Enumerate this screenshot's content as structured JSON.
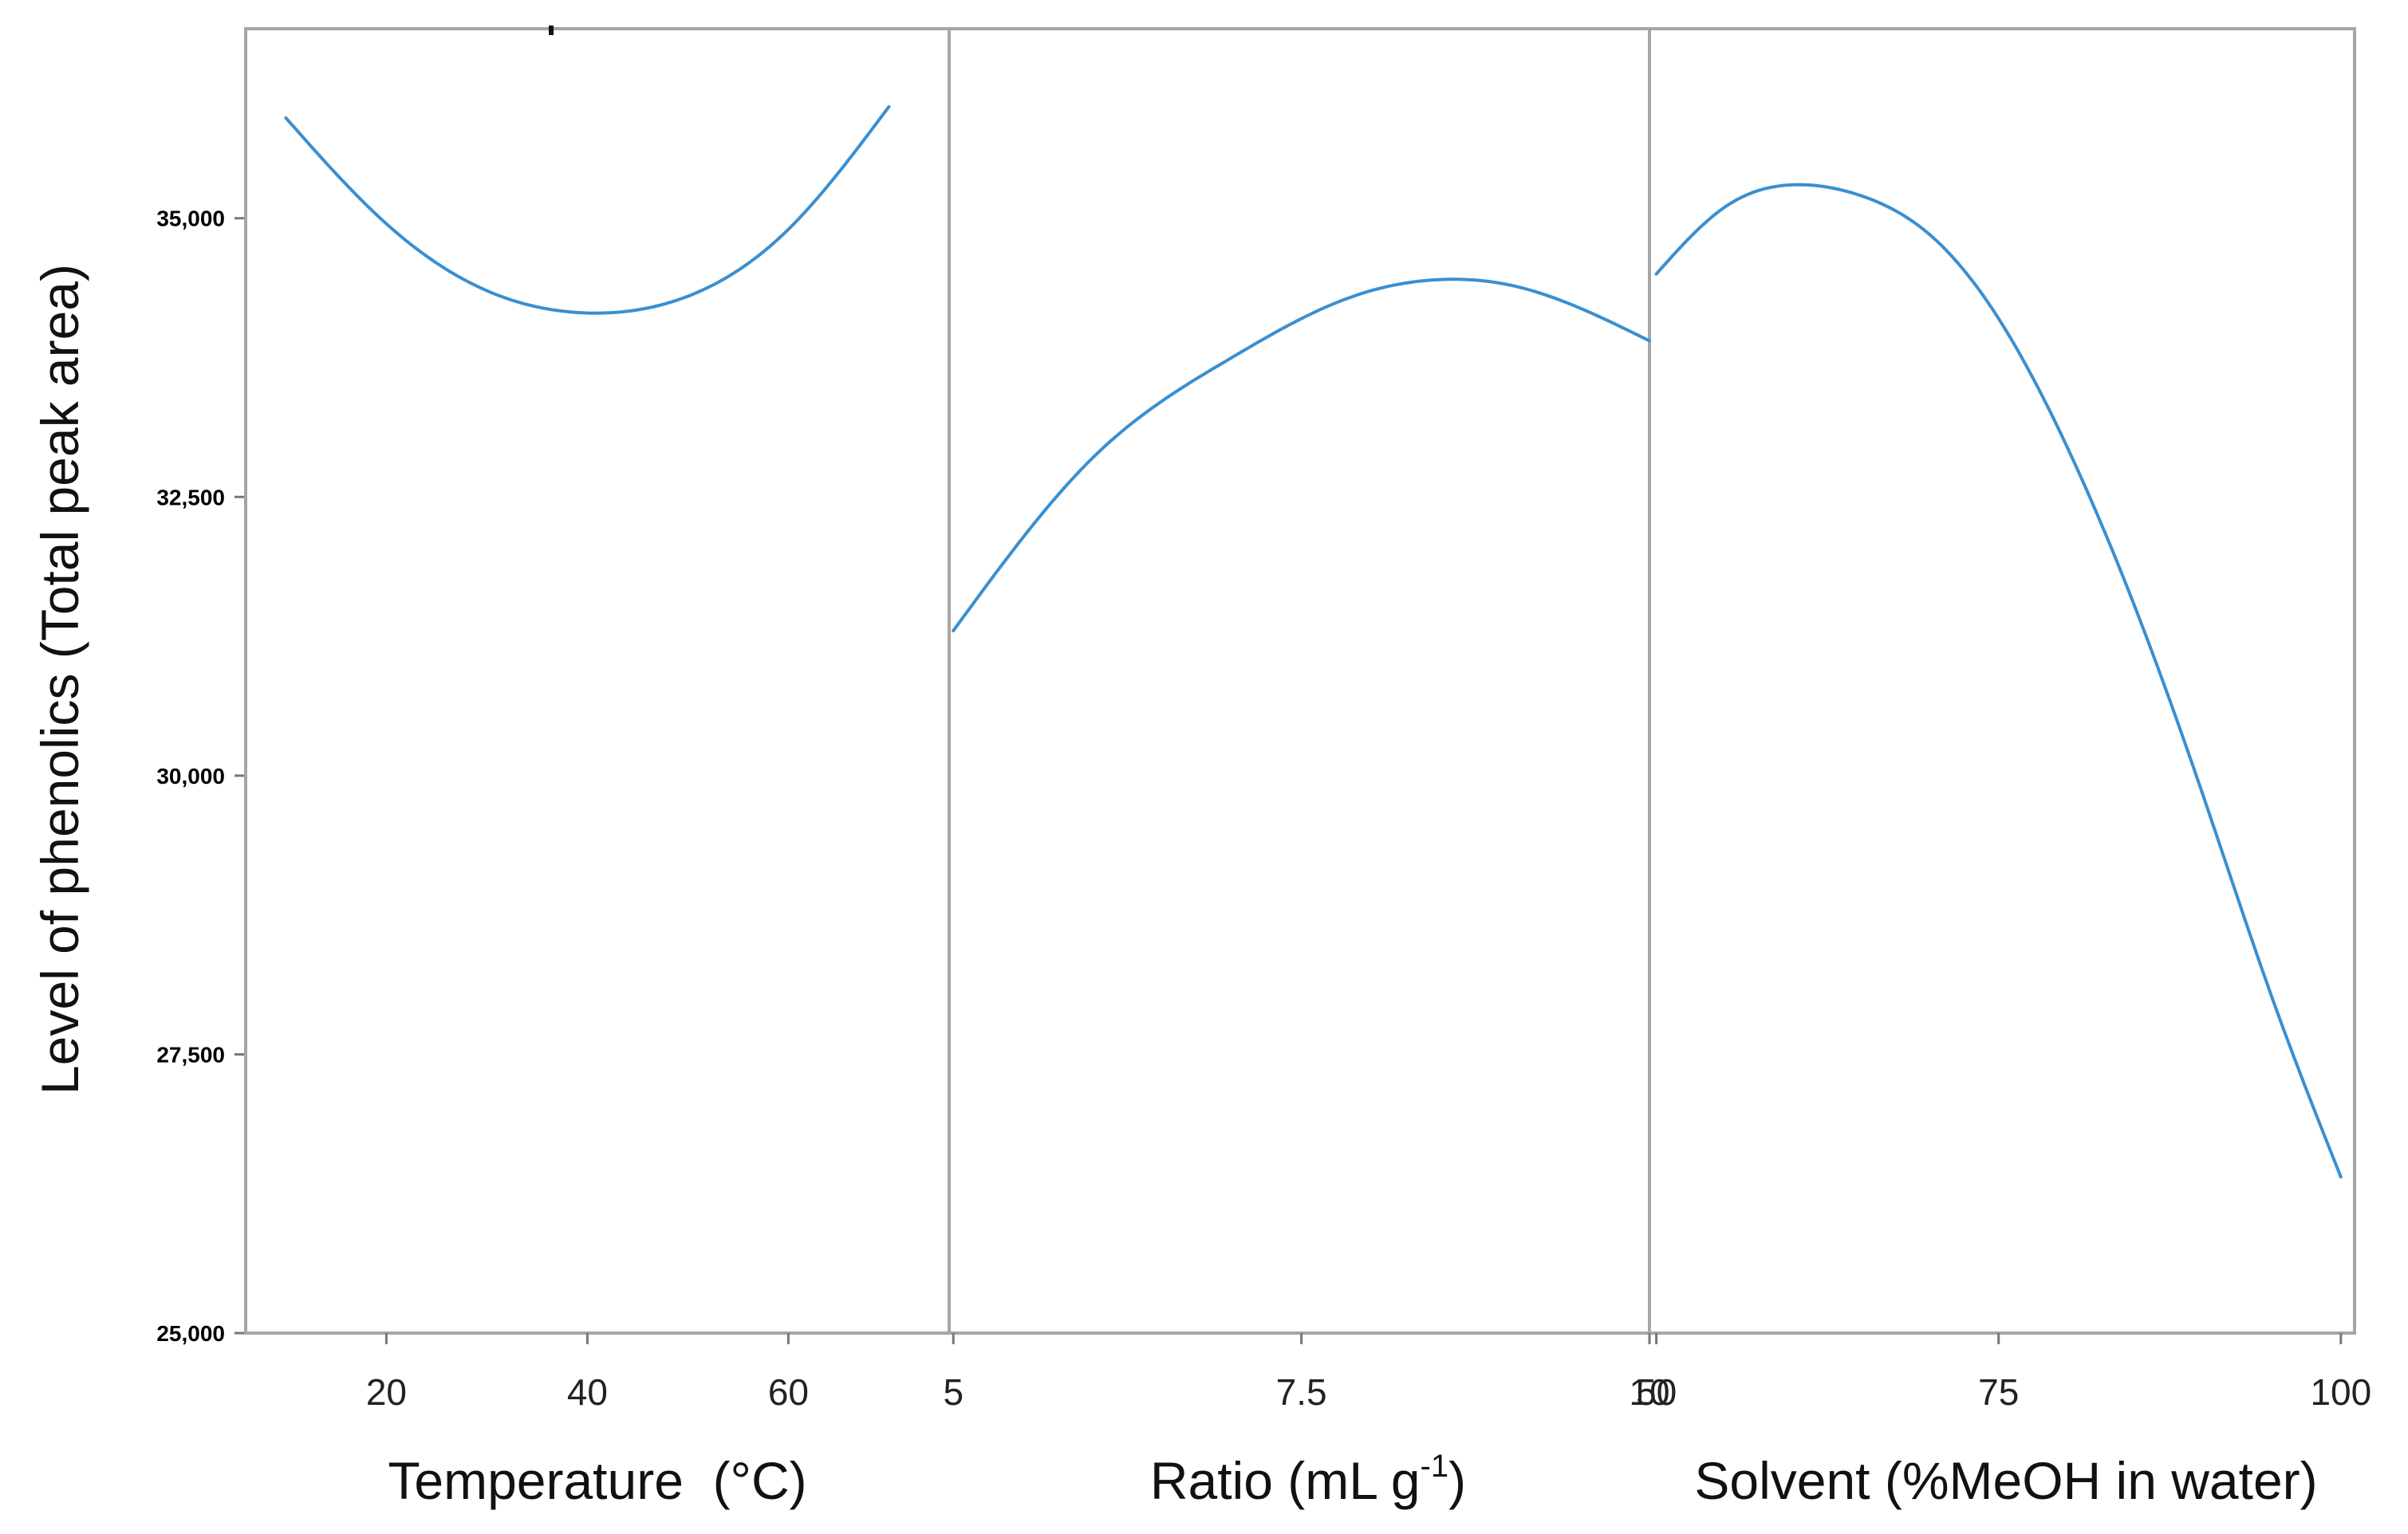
{
  "chart_data": {
    "type": "line",
    "ylabel": "Level of phenolics (Total peak area)",
    "ylim": [
      25000,
      36700
    ],
    "yticks": [
      25000,
      27500,
      30000,
      32500,
      35000
    ],
    "ytick_labels": [
      "25,000",
      "27,500",
      "30,000",
      "32,500",
      "35,000"
    ],
    "line_color": "#3a8fd0",
    "panels": [
      {
        "xlabel": "Temperature  (°C)",
        "xlim": [
          6,
          76
        ],
        "xticks": [
          20,
          40,
          60
        ],
        "xtick_labels": [
          "20",
          "40",
          "60"
        ],
        "x": [
          10,
          20,
          30,
          40,
          50,
          60,
          70
        ],
        "y": [
          35900,
          34950,
          34350,
          34150,
          34300,
          34900,
          36000
        ]
      },
      {
        "xlabel_main": "Ratio (mL g",
        "xlabel_sup": "-1",
        "xlabel_end": ")",
        "xlim": [
          4.97,
          10.0
        ],
        "xticks": [
          5,
          7.5,
          10
        ],
        "xtick_labels": [
          "5",
          "7.5",
          "10"
        ],
        "x": [
          5,
          6,
          7,
          7.5,
          8,
          8.5,
          9,
          10
        ],
        "y": [
          31300,
          32850,
          33750,
          34100,
          34350,
          34450,
          34400,
          33900
        ]
      },
      {
        "xlabel": "Solvent (%MeOH in water)",
        "xlim": [
          49.5,
          101
        ],
        "xticks": [
          50,
          75,
          100
        ],
        "xtick_labels": [
          "50",
          "75",
          "100"
        ],
        "x": [
          50,
          55,
          60,
          65,
          70,
          75,
          80,
          85,
          90,
          95,
          100
        ],
        "y": [
          34500,
          35100,
          35300,
          35200,
          34850,
          34100,
          32950,
          31500,
          29800,
          28000,
          26400
        ]
      }
    ]
  }
}
